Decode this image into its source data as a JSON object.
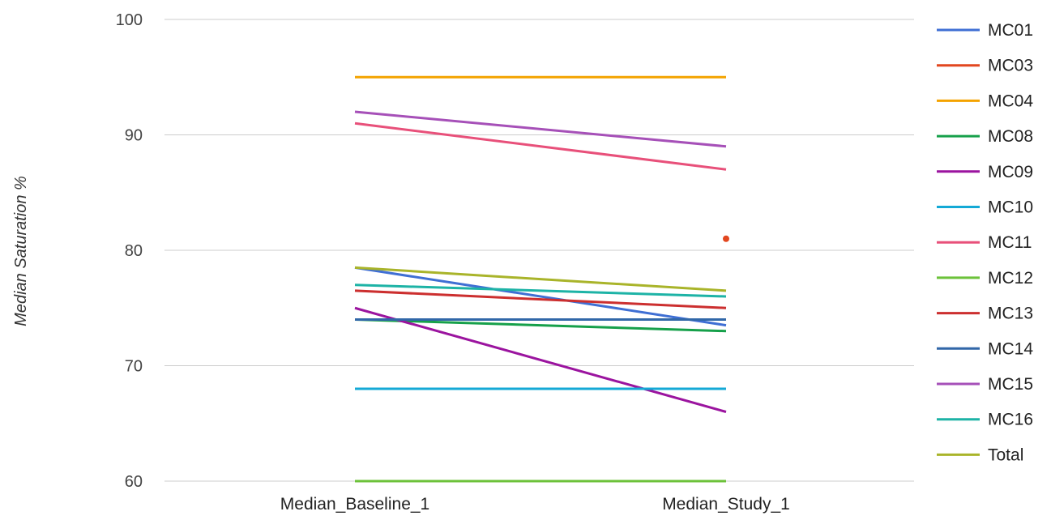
{
  "chart_data": {
    "type": "line",
    "title": "",
    "xlabel": "",
    "ylabel": "Median Saturation %",
    "categories": [
      "Median_Baseline_1",
      "Median_Study_1"
    ],
    "ylim": [
      60,
      100
    ],
    "yticks": [
      "60",
      "70",
      "80",
      "90",
      "100"
    ],
    "grid": true,
    "legend": "right",
    "series": [
      {
        "name": "MC01",
        "color": "#3f6fd4",
        "values": [
          78.5,
          73.5
        ]
      },
      {
        "name": "MC03",
        "color": "#e2471f",
        "values": [
          null,
          81
        ]
      },
      {
        "name": "MC04",
        "color": "#f4a300",
        "values": [
          95,
          95
        ]
      },
      {
        "name": "MC08",
        "color": "#16a04a",
        "values": [
          74,
          73
        ]
      },
      {
        "name": "MC09",
        "color": "#9b149f",
        "values": [
          75,
          66
        ]
      },
      {
        "name": "MC10",
        "color": "#14a9d6",
        "values": [
          68,
          68
        ]
      },
      {
        "name": "MC11",
        "color": "#e8507a",
        "values": [
          91,
          87
        ]
      },
      {
        "name": "MC12",
        "color": "#6cc23a",
        "values": [
          60,
          60
        ]
      },
      {
        "name": "MC13",
        "color": "#cc2f2f",
        "values": [
          76.5,
          75
        ]
      },
      {
        "name": "MC14",
        "color": "#3167a8",
        "values": [
          74,
          74
        ]
      },
      {
        "name": "MC15",
        "color": "#a650b8",
        "values": [
          92,
          89
        ]
      },
      {
        "name": "MC16",
        "color": "#1db3a6",
        "values": [
          77,
          76
        ]
      },
      {
        "name": "Total",
        "color": "#a9b42a",
        "values": [
          78.5,
          76.5
        ]
      }
    ]
  }
}
